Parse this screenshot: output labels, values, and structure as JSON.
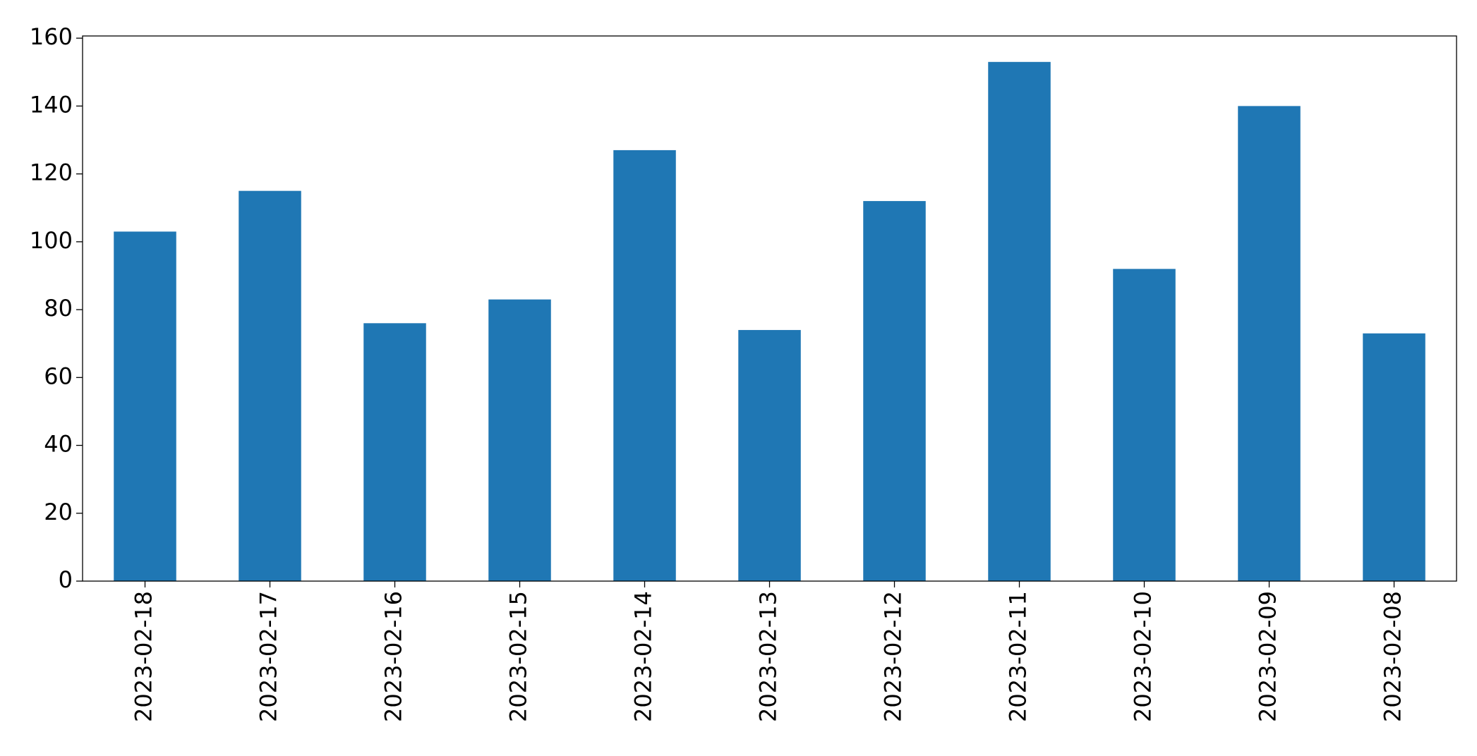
{
  "chart_data": {
    "type": "bar",
    "categories": [
      "2023-02-18",
      "2023-02-17",
      "2023-02-16",
      "2023-02-15",
      "2023-02-14",
      "2023-02-13",
      "2023-02-12",
      "2023-02-11",
      "2023-02-10",
      "2023-02-09",
      "2023-02-08"
    ],
    "values": [
      103,
      115,
      76,
      83,
      127,
      74,
      112,
      153,
      92,
      140,
      73
    ],
    "color": "#1f77b4",
    "ylim": [
      0,
      160.65
    ],
    "yticks": [
      0,
      20,
      40,
      60,
      80,
      100,
      120,
      140,
      160
    ],
    "grid": false
  }
}
